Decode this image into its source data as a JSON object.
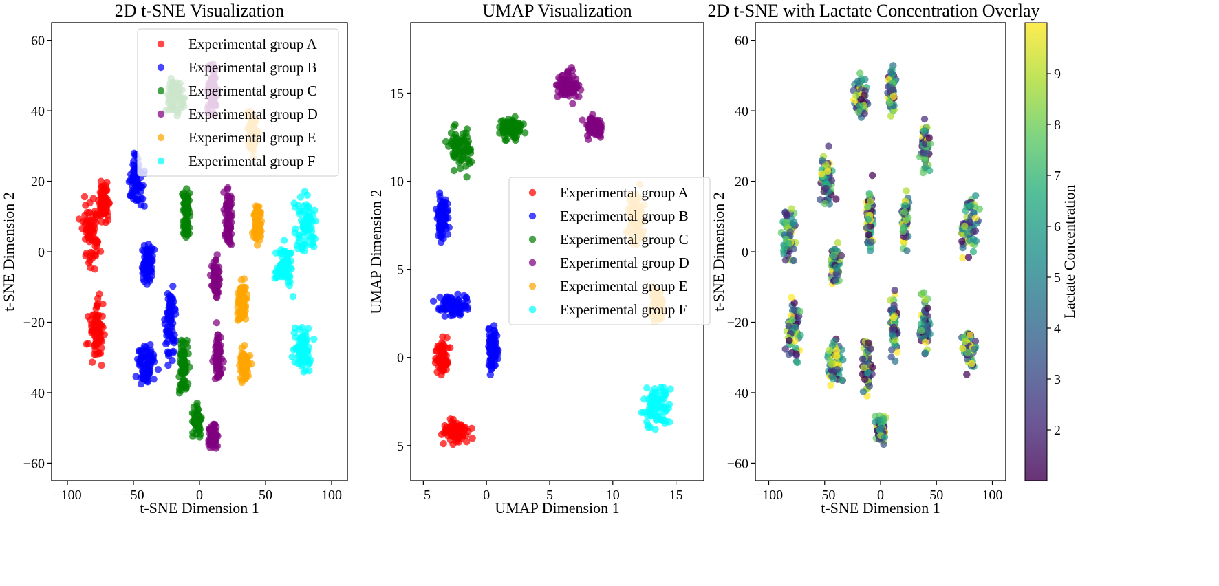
{
  "chart_data": [
    {
      "type": "scatter",
      "title": "2D t-SNE Visualization",
      "xlabel": "t-SNE Dimension 1",
      "ylabel": "t-SNE Dimension 2",
      "xlim": [
        -112,
        112
      ],
      "ylim": [
        -65,
        65
      ],
      "xticks": [
        -100,
        -50,
        0,
        50,
        100
      ],
      "yticks": [
        -60,
        -40,
        -20,
        0,
        20,
        40,
        60
      ],
      "xtick_labels": [
        "−100",
        "−50",
        "0",
        "50",
        "100"
      ],
      "ytick_labels": [
        "−60",
        "−40",
        "−20",
        "0",
        "20",
        "40",
        "60"
      ],
      "grid": false,
      "legend_position": "top-right",
      "series": [
        {
          "name": "Experimental group A",
          "color": "#ff0000",
          "clusters": [
            [
              -82,
              5,
              12,
              16
            ],
            [
              -78,
              -22,
              10,
              14
            ],
            [
              -72,
              14,
              6,
              8
            ]
          ]
        },
        {
          "name": "Experimental group B",
          "color": "#0000ff",
          "clusters": [
            [
              -48,
              20,
              10,
              12
            ],
            [
              -40,
              -4,
              8,
              10
            ],
            [
              -40,
              -32,
              12,
              10
            ],
            [
              -22,
              -20,
              6,
              18
            ]
          ]
        },
        {
          "name": "Experimental group C",
          "color": "#008000",
          "clusters": [
            [
              -18,
              44,
              10,
              10
            ],
            [
              -10,
              10,
              5,
              14
            ],
            [
              -12,
              -32,
              6,
              14
            ],
            [
              -2,
              -48,
              6,
              6
            ]
          ]
        },
        {
          "name": "Experimental group D",
          "color": "#800080",
          "clusters": [
            [
              10,
              46,
              6,
              12
            ],
            [
              22,
              10,
              5,
              14
            ],
            [
              12,
              -8,
              5,
              10
            ],
            [
              14,
              -30,
              5,
              12
            ],
            [
              10,
              -52,
              6,
              6
            ]
          ]
        },
        {
          "name": "Experimental group E",
          "color": "#ffa500",
          "clusters": [
            [
              40,
              34,
              6,
              10
            ],
            [
              44,
              8,
              6,
              10
            ],
            [
              32,
              -14,
              6,
              10
            ],
            [
              34,
              -32,
              7,
              8
            ]
          ]
        },
        {
          "name": "Experimental group F",
          "color": "#00ffff",
          "clusters": [
            [
              80,
              8,
              14,
              14
            ],
            [
              64,
              -4,
              10,
              10
            ],
            [
              78,
              -28,
              12,
              10
            ]
          ]
        }
      ]
    },
    {
      "type": "scatter",
      "title": "UMAP Visualization",
      "xlabel": "UMAP Dimension 1",
      "ylabel": "UMAP Dimension 2",
      "xlim": [
        -6,
        17.2
      ],
      "ylim": [
        -7,
        19
      ],
      "xticks": [
        -5,
        0,
        5,
        10,
        15
      ],
      "yticks": [
        -5,
        0,
        5,
        10,
        15
      ],
      "xtick_labels": [
        "−5",
        "0",
        "5",
        "10",
        "15"
      ],
      "ytick_labels": [
        "−5",
        "0",
        "5",
        "10",
        "15"
      ],
      "grid": false,
      "legend_position": "center-right",
      "series": [
        {
          "name": "Experimental group A",
          "color": "#ff0000",
          "clusters": [
            [
              -2.5,
              -4.2,
              1.6,
              1.1
            ],
            [
              -3.5,
              0,
              0.8,
              1.5
            ]
          ]
        },
        {
          "name": "Experimental group B",
          "color": "#0000ff",
          "clusters": [
            [
              -2.5,
              3,
              2.2,
              1.2
            ],
            [
              -3.5,
              8,
              0.8,
              2.5
            ],
            [
              0.5,
              0.5,
              0.6,
              2.0
            ]
          ]
        },
        {
          "name": "Experimental group C",
          "color": "#008000",
          "clusters": [
            [
              -2,
              12,
              1.8,
              2.2
            ],
            [
              2,
              13,
              1.5,
              1.0
            ]
          ]
        },
        {
          "name": "Experimental group D",
          "color": "#800080",
          "clusters": [
            [
              6.5,
              15.5,
              1.4,
              1.6
            ],
            [
              8.5,
              13,
              1.2,
              1.0
            ]
          ]
        },
        {
          "name": "Experimental group E",
          "color": "#ffa500",
          "clusters": [
            [
              11.8,
              8,
              1.0,
              2.5
            ],
            [
              13.5,
              3,
              0.8,
              1.5
            ]
          ]
        },
        {
          "name": "Experimental group F",
          "color": "#00ffff",
          "clusters": [
            [
              13.5,
              -2.8,
              1.6,
              2.2
            ]
          ]
        }
      ]
    },
    {
      "type": "scatter",
      "title": "2D t-SNE with Lactate Concentration Overlay",
      "xlabel": "t-SNE Dimension 1",
      "ylabel": "t-SNE Dimension 2",
      "xlim": [
        -112,
        112
      ],
      "ylim": [
        -65,
        65
      ],
      "xticks": [
        -100,
        -50,
        0,
        50,
        100
      ],
      "yticks": [
        -60,
        -40,
        -20,
        0,
        20,
        40,
        60
      ],
      "xtick_labels": [
        "−100",
        "−50",
        "0",
        "50",
        "100"
      ],
      "ytick_labels": [
        "−60",
        "−40",
        "−20",
        "0",
        "20",
        "40",
        "60"
      ],
      "grid": false,
      "colorbar": {
        "label": "Lactate Concentration",
        "range": [
          1,
          10
        ],
        "colormap": "viridis",
        "ticks": [
          2,
          3,
          4,
          5,
          6,
          7,
          8,
          9
        ],
        "tick_labels": [
          "2",
          "3",
          "4",
          "5",
          "6",
          "7",
          "8",
          "9"
        ]
      },
      "clusters": [
        [
          -82,
          5,
          12,
          16
        ],
        [
          -78,
          -22,
          10,
          14
        ],
        [
          -48,
          20,
          10,
          12
        ],
        [
          -40,
          -4,
          8,
          10
        ],
        [
          -40,
          -32,
          12,
          10
        ],
        [
          -18,
          44,
          10,
          10
        ],
        [
          -10,
          10,
          5,
          14
        ],
        [
          -12,
          -32,
          6,
          14
        ],
        [
          0,
          -50,
          8,
          6
        ],
        [
          10,
          46,
          6,
          12
        ],
        [
          22,
          10,
          5,
          14
        ],
        [
          12,
          -20,
          5,
          16
        ],
        [
          40,
          30,
          6,
          12
        ],
        [
          40,
          -20,
          7,
          14
        ],
        [
          80,
          8,
          14,
          14
        ],
        [
          78,
          -28,
          12,
          10
        ]
      ]
    }
  ]
}
